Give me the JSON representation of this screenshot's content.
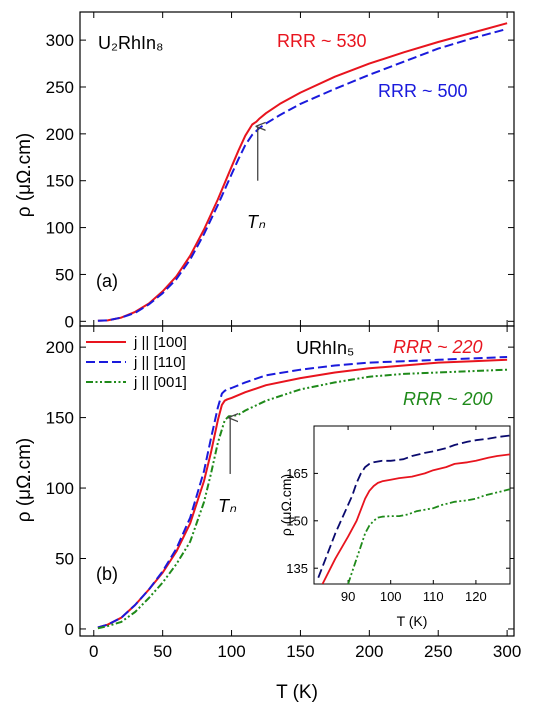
{
  "colors": {
    "red": "#e8141e",
    "blue": "#1a1adc",
    "green": "#1f8a1a",
    "navy": "#0a0a6e",
    "axis": "#000000",
    "arrow": "#444444"
  },
  "chart_data": [
    {
      "panel": "a",
      "type": "line",
      "panel_label": "(a)",
      "compound": "U₂RhIn₈",
      "ylabel": "ρ (μΩ.cm)",
      "xlim": [
        -10,
        305
      ],
      "ylim": [
        -5,
        330
      ],
      "yticks": [
        0,
        50,
        100,
        150,
        200,
        250,
        300
      ],
      "xticks": [
        0,
        50,
        100,
        150,
        200,
        250,
        300
      ],
      "annotations": [
        {
          "text": "RRR ~ 530",
          "color": "red"
        },
        {
          "text": "RRR ~ 500",
          "color": "blue"
        }
      ],
      "arrow_label": "Tₙ",
      "series": [
        {
          "color": "red",
          "dash": "solid",
          "x": [
            3,
            10,
            20,
            30,
            40,
            50,
            60,
            70,
            80,
            90,
            100,
            105,
            110,
            115,
            118,
            120,
            125,
            135,
            150,
            175,
            200,
            225,
            250,
            275,
            300
          ],
          "y": [
            0.5,
            1,
            4,
            10,
            19,
            32,
            48,
            70,
            98,
            130,
            165,
            182,
            198,
            210,
            213,
            216,
            222,
            232,
            244,
            261,
            275,
            287,
            298,
            308,
            318
          ]
        },
        {
          "color": "blue",
          "dash": "dashed",
          "x": [
            3,
            10,
            20,
            30,
            40,
            50,
            60,
            70,
            80,
            90,
            100,
            105,
            110,
            115,
            118,
            120,
            125,
            135,
            150,
            175,
            200,
            225,
            250,
            275,
            300
          ],
          "y": [
            0.5,
            1,
            4,
            9,
            18,
            30,
            45,
            66,
            93,
            124,
            157,
            173,
            188,
            199,
            203,
            206,
            211,
            220,
            232,
            248,
            263,
            277,
            291,
            302,
            312
          ]
        }
      ]
    },
    {
      "panel": "b",
      "type": "line",
      "panel_label": "(b)",
      "compound": "URhIn₅",
      "ylabel": "ρ (μΩ.cm)",
      "xlabel": "T (K)",
      "xlim": [
        -10,
        305
      ],
      "ylim": [
        -5,
        215
      ],
      "yticks": [
        0,
        50,
        100,
        150,
        200
      ],
      "xticks": [
        0,
        50,
        100,
        150,
        200,
        250,
        300
      ],
      "annotations": [
        {
          "text": "RRR ~ 220",
          "color": "red"
        },
        {
          "text": "RRR ~ 200",
          "color": "green"
        }
      ],
      "arrow_label": "Tₙ",
      "legend": [
        {
          "label": "j || [100]",
          "color": "red",
          "dash": "solid"
        },
        {
          "label": "j || [110]",
          "color": "blue",
          "dash": "dashed"
        },
        {
          "label": "j || [001]",
          "color": "green",
          "dash": "dashdotdot"
        }
      ],
      "series": [
        {
          "name": "j || [100]",
          "color": "red",
          "dash": "solid",
          "x": [
            3,
            10,
            20,
            30,
            40,
            50,
            60,
            70,
            80,
            85,
            90,
            93,
            95,
            97,
            100,
            110,
            125,
            150,
            175,
            200,
            225,
            250,
            275,
            300
          ],
          "y": [
            1,
            3,
            8,
            17,
            28,
            40,
            55,
            75,
            105,
            125,
            148,
            159,
            162,
            163,
            164,
            168,
            173,
            178,
            182,
            185,
            187,
            189,
            190,
            191
          ]
        },
        {
          "name": "j || [110]",
          "color": "blue",
          "dash": "dashed",
          "x": [
            3,
            10,
            20,
            30,
            40,
            50,
            60,
            70,
            80,
            85,
            90,
            93,
            95,
            97,
            100,
            110,
            125,
            150,
            175,
            200,
            225,
            250,
            275,
            300
          ],
          "y": [
            1,
            3,
            8,
            17,
            28,
            41,
            57,
            79,
            112,
            135,
            157,
            167,
            169,
            170,
            171,
            175,
            180,
            184,
            187,
            189,
            190,
            191,
            192,
            193
          ]
        },
        {
          "name": "j || [001]",
          "color": "green",
          "dash": "dashdotdot",
          "x": [
            3,
            10,
            20,
            30,
            40,
            50,
            60,
            70,
            80,
            85,
            90,
            95,
            98,
            100,
            105,
            110,
            125,
            150,
            175,
            200,
            225,
            250,
            275,
            300
          ],
          "y": [
            0.5,
            2,
            5,
            12,
            22,
            33,
            46,
            62,
            90,
            110,
            132,
            148,
            151,
            151,
            152,
            155,
            162,
            170,
            175,
            179,
            181,
            182,
            183,
            184
          ]
        }
      ]
    },
    {
      "panel": "b-inset",
      "type": "line",
      "xlabel": "T (K)",
      "ylabel": "ρ (μΩ.cm)",
      "xlim": [
        82,
        128
      ],
      "ylim": [
        130,
        180
      ],
      "xticks": [
        90,
        100,
        110,
        120
      ],
      "yticks": [
        135,
        150,
        165
      ],
      "series": [
        {
          "color": "red",
          "dash": "solid",
          "x": [
            84,
            87,
            90,
            92,
            94,
            95,
            96,
            97,
            98,
            100,
            102,
            105,
            108,
            110,
            113,
            115,
            118,
            120,
            123,
            125,
            128
          ],
          "y": [
            130,
            138,
            145,
            150,
            157,
            159.5,
            161,
            162,
            162.5,
            163,
            163.5,
            164,
            165,
            166,
            167,
            168,
            168.5,
            169,
            170,
            170.5,
            171
          ]
        },
        {
          "color": "navy",
          "dash": "dashed",
          "x": [
            83,
            85,
            87,
            89,
            91,
            92,
            93,
            94,
            95,
            96,
            98,
            100,
            103,
            105,
            108,
            110,
            113,
            115,
            118,
            120,
            123,
            125,
            128
          ],
          "y": [
            132,
            139,
            146,
            152,
            158,
            162,
            165,
            167,
            168,
            168.5,
            169,
            169,
            169.5,
            170.5,
            171.5,
            172,
            173,
            174,
            175,
            175.5,
            176,
            176.5,
            177
          ]
        },
        {
          "color": "green",
          "dash": "dashdotdot",
          "x": [
            90,
            91,
            92,
            93,
            94,
            95,
            96,
            97,
            98,
            100,
            102,
            104,
            106,
            108,
            110,
            112,
            115,
            118,
            120,
            122,
            125,
            128
          ],
          "y": [
            130,
            134,
            138,
            142,
            146,
            148.5,
            150,
            151,
            151.3,
            151.5,
            151.5,
            152,
            153,
            153.5,
            154,
            155,
            156,
            156.5,
            157,
            158,
            159,
            160
          ]
        }
      ]
    }
  ]
}
